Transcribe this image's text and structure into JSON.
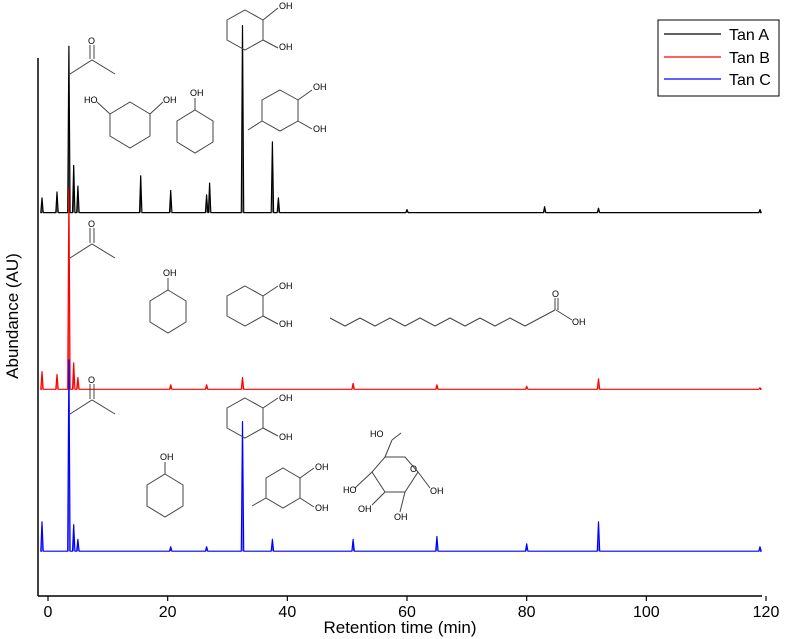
{
  "chart_data": {
    "type": "line",
    "title": "",
    "xlabel": "Retention time (min)",
    "ylabel": "Abundance (AU)",
    "xlim": [
      -2,
      120
    ],
    "xticks": [
      0,
      20,
      40,
      60,
      80,
      100,
      120
    ],
    "ylim": [
      0,
      3.6
    ],
    "grid": false,
    "y_tick_labels_shown": false,
    "legend": {
      "position": "top-right",
      "entries": [
        "Tan A",
        "Tan B",
        "Tan C"
      ]
    },
    "series": [
      {
        "name": "Tan A",
        "color": "#000000",
        "baseline_offset": 2.55,
        "points": [
          [
            -1,
            0.1
          ],
          [
            1.5,
            0.14
          ],
          [
            3.5,
            1.13
          ],
          [
            4.3,
            0.32
          ],
          [
            5,
            0.18
          ],
          [
            15.5,
            0.25
          ],
          [
            20.5,
            0.15
          ],
          [
            26.5,
            0.12
          ],
          [
            27,
            0.2
          ],
          [
            32.5,
            1.27
          ],
          [
            37.5,
            0.48
          ],
          [
            38.5,
            0.1
          ],
          [
            60,
            0.02
          ],
          [
            83,
            0.04
          ],
          [
            92,
            0.03
          ],
          [
            119,
            0.02
          ]
        ]
      },
      {
        "name": "Tan B",
        "color": "#ff0000",
        "baseline_offset": 1.35,
        "points": [
          [
            -1,
            0.12
          ],
          [
            1.5,
            0.1
          ],
          [
            3.5,
            1.36
          ],
          [
            4.3,
            0.18
          ],
          [
            5,
            0.08
          ],
          [
            20.5,
            0.03
          ],
          [
            26.5,
            0.03
          ],
          [
            32.5,
            0.08
          ],
          [
            51,
            0.04
          ],
          [
            65,
            0.03
          ],
          [
            80,
            0.02
          ],
          [
            92,
            0.07
          ],
          [
            119,
            0.01
          ]
        ]
      },
      {
        "name": "Tan C",
        "color": "#0000ff",
        "baseline_offset": 0.25,
        "points": [
          [
            -1,
            0.2
          ],
          [
            3.5,
            1.3
          ],
          [
            4.3,
            0.18
          ],
          [
            5,
            0.08
          ],
          [
            20.5,
            0.03
          ],
          [
            26.5,
            0.03
          ],
          [
            32.5,
            0.88
          ],
          [
            37.5,
            0.08
          ],
          [
            51,
            0.08
          ],
          [
            65,
            0.1
          ],
          [
            80,
            0.05
          ],
          [
            92,
            0.2
          ],
          [
            119,
            0.03
          ]
        ]
      }
    ],
    "structure_annotations": [
      {
        "atom_labels": [
          "O"
        ]
      },
      {
        "atom_labels": [
          "HO",
          "OH"
        ]
      },
      {
        "atom_labels": [
          "OH"
        ]
      },
      {
        "atom_labels": [
          "OH",
          "OH"
        ]
      },
      {
        "atom_labels": [
          "OH",
          "OH"
        ]
      },
      {
        "atom_labels": [
          "O"
        ]
      },
      {
        "atom_labels": [
          "OH"
        ]
      },
      {
        "atom_labels": [
          "OH",
          "OH"
        ]
      },
      {
        "atom_labels": [
          "O",
          "OH"
        ]
      },
      {
        "atom_labels": [
          "O"
        ]
      },
      {
        "atom_labels": [
          "OH"
        ]
      },
      {
        "atom_labels": [
          "OH",
          "OH"
        ]
      },
      {
        "atom_labels": [
          "OH",
          "OH"
        ]
      },
      {
        "atom_labels": [
          "HO",
          "O",
          "HO",
          "OH",
          "OH",
          "OH"
        ]
      }
    ]
  }
}
